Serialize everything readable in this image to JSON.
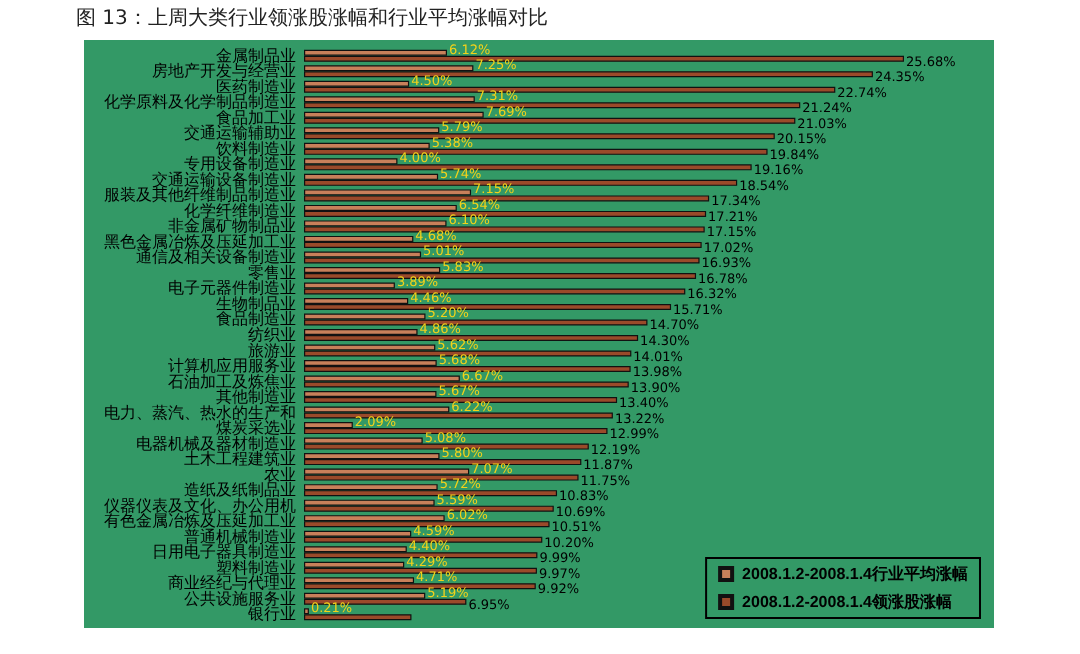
{
  "chart_data": {
    "type": "bar",
    "orientation": "horizontal",
    "title": "图 13：上周大类行业领涨股涨幅和行业平均涨幅对比",
    "legend": "bottom right",
    "categories": [
      "金属制品业",
      "房地产开发与经营业",
      "医药制造业",
      "化学原料及化学制品制造业",
      "食品加工业",
      "交通运输辅助业",
      "饮料制造业",
      "专用设备制造业",
      "交通运输设备制造业",
      "服装及其他纤维制品制造业",
      "化学纤维制造业",
      "非金属矿物制品业",
      "黑色金属冶炼及压延加工业",
      "通信及相关设备制造业",
      "零售业",
      "电子元器件制造业",
      "生物制品业",
      "食品制造业",
      "纺织业",
      "旅游业",
      "计算机应用服务业",
      "石油加工及炼焦业",
      "其他制造业",
      "电力、蒸汽、热水的生产和",
      "煤炭采选业",
      "电器机械及器材制造业",
      "土木工程建筑业",
      "农业",
      "造纸及纸制品业",
      "仪器仪表及文化、办公用机",
      "有色金属冶炼及压延加工业",
      "普通机械制造业",
      "日用电子器具制造业",
      "塑料制造业",
      "商业经纪与代理业",
      "公共设施服务业",
      "银行业"
    ],
    "series": [
      {
        "name": "2008.1.2-2008.1.4行业平均涨幅",
        "color": "#c8805a",
        "values": [
          6.12,
          7.25,
          4.5,
          7.31,
          7.69,
          5.79,
          5.38,
          4.0,
          5.74,
          7.15,
          6.54,
          6.1,
          4.68,
          5.01,
          5.83,
          3.89,
          4.46,
          5.2,
          4.86,
          5.62,
          5.68,
          6.67,
          5.67,
          6.22,
          2.09,
          5.08,
          5.8,
          7.07,
          5.72,
          5.59,
          6.02,
          4.59,
          4.4,
          4.29,
          4.71,
          5.19,
          0.21
        ],
        "value_labels": [
          "6.12%",
          "7.25%",
          "4.50%",
          "7.31%",
          "7.69%",
          "5.79%",
          "5.38%",
          "4.00%",
          "5.74%",
          "7.15%",
          "6.54%",
          "6.10%",
          "4.68%",
          "5.01%",
          "5.83%",
          "3.89%",
          "4.46%",
          "5.20%",
          "4.86%",
          "5.62%",
          "5.68%",
          "6.67%",
          "5.67%",
          "6.22%",
          "2.09%",
          "5.08%",
          "5.80%",
          "7.07%",
          "5.72%",
          "5.59%",
          "6.02%",
          "4.59%",
          "4.40%",
          "4.29%",
          "4.71%",
          "5.19%",
          "0.21%"
        ]
      },
      {
        "name": "2008.1.2-2008.1.4领涨股涨幅",
        "color": "#9a4a2a",
        "values": [
          25.68,
          24.35,
          22.74,
          21.24,
          21.03,
          20.15,
          19.84,
          19.16,
          18.54,
          17.34,
          17.21,
          17.15,
          17.02,
          16.93,
          16.78,
          16.32,
          15.71,
          14.7,
          14.3,
          14.01,
          13.98,
          13.9,
          13.4,
          13.22,
          12.99,
          12.19,
          11.87,
          11.75,
          10.83,
          10.69,
          10.51,
          10.2,
          9.99,
          9.97,
          9.92,
          6.95,
          4.6
        ],
        "value_labels": [
          "25.68%",
          "24.35%",
          "22.74%",
          "21.24%",
          "21.03%",
          "20.15%",
          "19.84%",
          "19.16%",
          "18.54%",
          "17.34%",
          "17.21%",
          "17.15%",
          "17.02%",
          "16.93%",
          "16.78%",
          "16.32%",
          "15.71%",
          "14.70%",
          "14.30%",
          "14.01%",
          "13.98%",
          "13.90%",
          "13.40%",
          "13.22%",
          "12.99%",
          "12.19%",
          "11.87%",
          "11.75%",
          "10.83%",
          "10.69%",
          "10.51%",
          "10.20%",
          "9.99%",
          "9.97%",
          "9.92%",
          "6.95%",
          null
        ]
      }
    ]
  }
}
